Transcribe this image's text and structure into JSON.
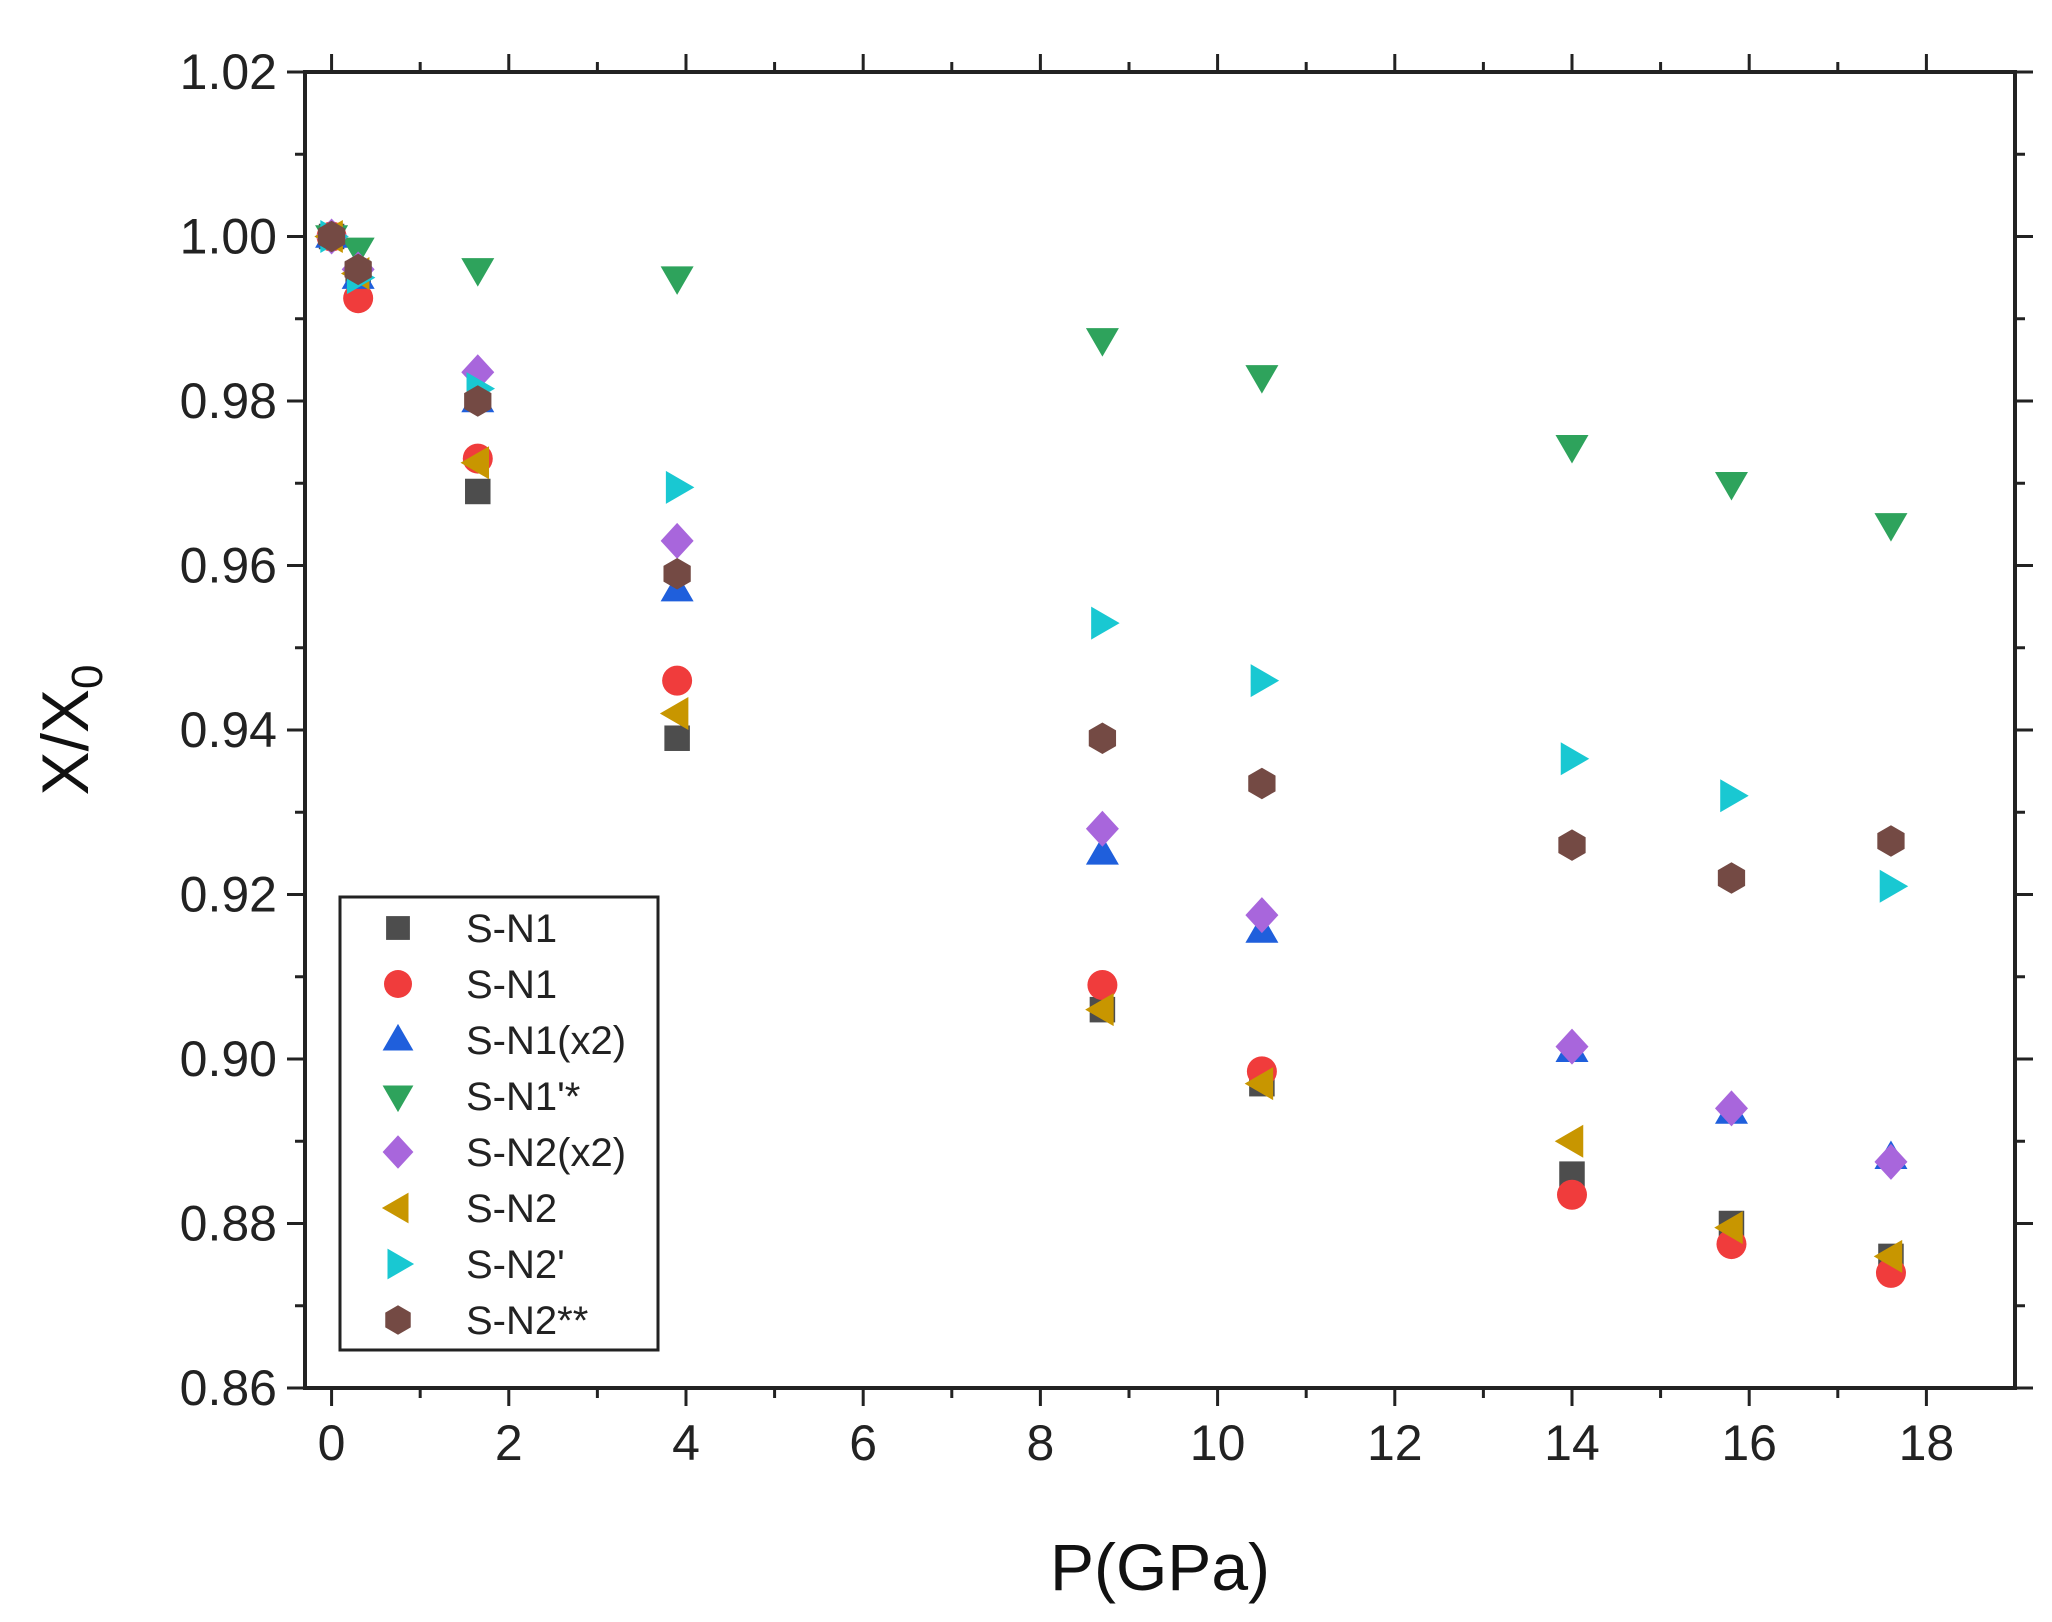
{
  "chart_data": {
    "type": "scatter",
    "title": "",
    "xlabel": "P(GPa)",
    "ylabel_main": "X/X",
    "ylabel_sub": "0",
    "xlim": [
      -0.3,
      19
    ],
    "ylim": [
      0.86,
      1.02
    ],
    "xticks": [
      0,
      2,
      4,
      6,
      8,
      10,
      12,
      14,
      16,
      18
    ],
    "yticks": [
      0.86,
      0.88,
      0.9,
      0.92,
      0.94,
      0.96,
      0.98,
      1.0,
      1.02
    ],
    "xtick_labels": [
      "0",
      "2",
      "4",
      "6",
      "8",
      "10",
      "12",
      "14",
      "16",
      "18"
    ],
    "ytick_labels": [
      "0.86",
      "0.88",
      "0.90",
      "0.92",
      "0.94",
      "0.96",
      "0.98",
      "1.00",
      "1.02"
    ],
    "grid": false,
    "legend_position": "bottom-left",
    "series": [
      {
        "name": "S-N1",
        "marker": "square",
        "color": "#4d4d4d",
        "points": [
          [
            0,
            1.0
          ],
          [
            0.3,
            0.9955
          ],
          [
            1.65,
            0.969
          ],
          [
            3.9,
            0.939
          ],
          [
            8.7,
            0.906
          ],
          [
            10.5,
            0.897
          ],
          [
            14,
            0.886
          ],
          [
            15.8,
            0.88
          ],
          [
            17.6,
            0.876
          ]
        ]
      },
      {
        "name": "S-N1",
        "marker": "circle",
        "color": "#f03c3c",
        "points": [
          [
            0,
            1.0
          ],
          [
            0.3,
            0.9925
          ],
          [
            1.65,
            0.973
          ],
          [
            3.9,
            0.946
          ],
          [
            8.7,
            0.909
          ],
          [
            10.5,
            0.8985
          ],
          [
            14,
            0.8835
          ],
          [
            15.8,
            0.8775
          ],
          [
            17.6,
            0.874
          ]
        ]
      },
      {
        "name": "S-N1(x2)",
        "marker": "triangle-up",
        "color": "#1f5fdc",
        "points": [
          [
            0,
            1.0
          ],
          [
            0.3,
            0.995
          ],
          [
            1.65,
            0.98
          ],
          [
            3.9,
            0.957
          ],
          [
            8.7,
            0.925
          ],
          [
            10.5,
            0.9155
          ],
          [
            14,
            0.901
          ],
          [
            15.8,
            0.8935
          ],
          [
            17.6,
            0.888
          ]
        ]
      },
      {
        "name": "S-N1'*",
        "marker": "triangle-down",
        "color": "#2ea35c",
        "points": [
          [
            0,
            1.0
          ],
          [
            0.3,
            0.9985
          ],
          [
            1.65,
            0.996
          ],
          [
            3.9,
            0.995
          ],
          [
            8.7,
            0.9875
          ],
          [
            10.5,
            0.983
          ],
          [
            14,
            0.9745
          ],
          [
            15.8,
            0.97
          ],
          [
            17.6,
            0.965
          ]
        ]
      },
      {
        "name": "S-N2(x2)",
        "marker": "diamond",
        "color": "#a866dc",
        "points": [
          [
            0,
            1.0
          ],
          [
            0.3,
            0.996
          ],
          [
            1.65,
            0.9835
          ],
          [
            3.9,
            0.963
          ],
          [
            8.7,
            0.928
          ],
          [
            10.5,
            0.9175
          ],
          [
            14,
            0.9015
          ],
          [
            15.8,
            0.894
          ],
          [
            17.6,
            0.8875
          ]
        ]
      },
      {
        "name": "S-N2",
        "marker": "triangle-left",
        "color": "#c89600",
        "points": [
          [
            0,
            1.0
          ],
          [
            0.3,
            0.9955
          ],
          [
            1.65,
            0.9725
          ],
          [
            3.9,
            0.942
          ],
          [
            8.7,
            0.906
          ],
          [
            10.5,
            0.897
          ],
          [
            14,
            0.89
          ],
          [
            15.8,
            0.8795
          ],
          [
            17.6,
            0.876
          ]
        ]
      },
      {
        "name": "S-N2'",
        "marker": "triangle-right",
        "color": "#19c8d2",
        "points": [
          [
            0,
            1.0
          ],
          [
            0.3,
            0.995
          ],
          [
            1.65,
            0.9815
          ],
          [
            3.9,
            0.9695
          ],
          [
            8.7,
            0.953
          ],
          [
            10.5,
            0.946
          ],
          [
            14,
            0.9365
          ],
          [
            15.8,
            0.932
          ],
          [
            17.6,
            0.921
          ]
        ]
      },
      {
        "name": "S-N2**",
        "marker": "hexagon",
        "color": "#744a44",
        "points": [
          [
            0,
            1.0
          ],
          [
            0.3,
            0.996
          ],
          [
            1.65,
            0.98
          ],
          [
            3.9,
            0.959
          ],
          [
            8.7,
            0.939
          ],
          [
            10.5,
            0.9335
          ],
          [
            14,
            0.926
          ],
          [
            15.8,
            0.922
          ],
          [
            17.6,
            0.9265
          ]
        ]
      }
    ]
  }
}
